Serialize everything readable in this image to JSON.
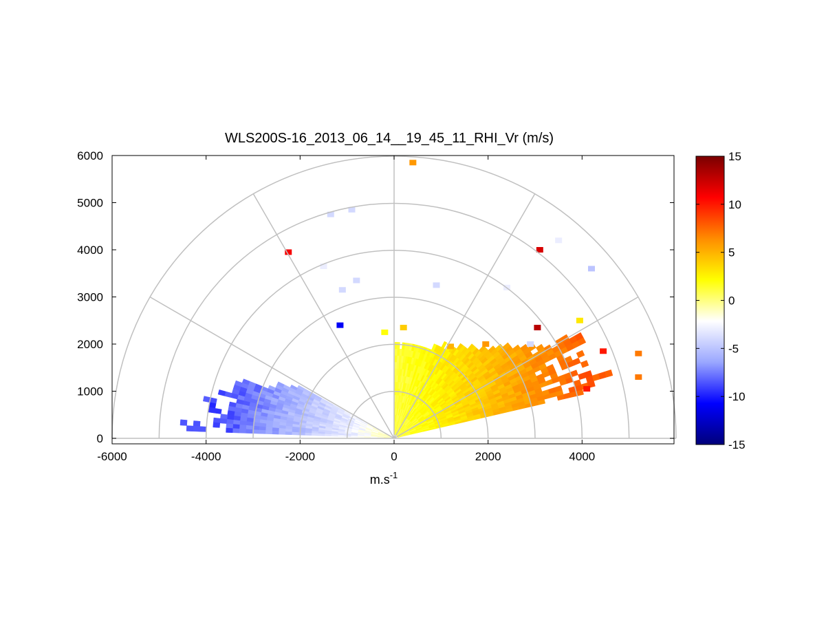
{
  "chart_data": {
    "type": "heatmap",
    "subtype": "polar RHI scan",
    "title": "WLS200S-16_2013_06_14__19_45_11_RHI_Vr (m/s)",
    "xlabel": "m.s",
    "xlabel_superscript": "-1",
    "ylabel": "",
    "xlim": [
      -6000,
      6000
    ],
    "ylim": [
      0,
      6000
    ],
    "xticks": [
      -6000,
      -4000,
      -2000,
      0,
      2000,
      4000
    ],
    "xtick_labels": [
      "-6000",
      "-4000",
      "-2000",
      "0",
      "2000",
      "4000"
    ],
    "yticks": [
      0,
      1000,
      2000,
      3000,
      4000,
      5000,
      6000
    ],
    "ytick_labels": [
      "0",
      "1000",
      "2000",
      "3000",
      "4000",
      "5000",
      "6000"
    ],
    "polar_grid": {
      "range_rings_m": [
        1000,
        2000,
        3000,
        4000,
        5000,
        6000
      ],
      "spoke_angles_deg": [
        0,
        30,
        60,
        90,
        120,
        150,
        180
      ]
    },
    "colorbar": {
      "range": [
        -15,
        15
      ],
      "ticks": [
        15,
        10,
        5,
        0,
        -5,
        -10,
        -15
      ],
      "tick_labels": [
        "15",
        "10",
        "5",
        "0",
        "-5",
        "-10",
        "-15"
      ],
      "colors": [
        "#7a0000",
        "#ff0000",
        "#ff8c00",
        "#ffff00",
        "#ffffff",
        "#9aa7ff",
        "#0000ff",
        "#00007a"
      ]
    },
    "coverage": {
      "negative_sector": {
        "elev_deg": [
          150,
          180
        ],
        "range_m": [
          0,
          5000
        ],
        "vr_ms": [
          -1,
          -9
        ]
      },
      "positive_sector": {
        "elev_deg": [
          0,
          90
        ],
        "range_m": [
          0,
          5500
        ],
        "vr_ms": [
          1,
          8
        ]
      }
    },
    "isolated_returns": [
      {
        "x": 4200,
        "y": 3600,
        "vr": -5
      },
      {
        "x": 3500,
        "y": 4200,
        "vr": -3
      },
      {
        "x": 3100,
        "y": 4000,
        "vr": 12
      },
      {
        "x": 2900,
        "y": 2000,
        "vr": -4
      },
      {
        "x": 2400,
        "y": 3200,
        "vr": -3
      },
      {
        "x": 900,
        "y": 3250,
        "vr": -4
      },
      {
        "x": -900,
        "y": 4850,
        "vr": -4
      },
      {
        "x": -1350,
        "y": 4750,
        "vr": -4
      },
      {
        "x": -2250,
        "y": 3950,
        "vr": 11
      },
      {
        "x": -1500,
        "y": 3650,
        "vr": -3
      },
      {
        "x": -800,
        "y": 3350,
        "vr": -4
      },
      {
        "x": -1100,
        "y": 3150,
        "vr": -4
      },
      {
        "x": -1150,
        "y": 2400,
        "vr": -11
      },
      {
        "x": -200,
        "y": 2250,
        "vr": 2
      },
      {
        "x": 200,
        "y": 2350,
        "vr": 4
      },
      {
        "x": 400,
        "y": 5850,
        "vr": 6
      },
      {
        "x": 1200,
        "y": 1950,
        "vr": 5
      },
      {
        "x": 1950,
        "y": 2000,
        "vr": 6
      },
      {
        "x": 3050,
        "y": 2350,
        "vr": 13
      },
      {
        "x": 3950,
        "y": 2500,
        "vr": 3
      },
      {
        "x": 4450,
        "y": 1850,
        "vr": 10
      },
      {
        "x": 4100,
        "y": 1050,
        "vr": 10
      },
      {
        "x": 5200,
        "y": 1300,
        "vr": 7
      },
      {
        "x": 5200,
        "y": 1800,
        "vr": 7
      }
    ]
  }
}
